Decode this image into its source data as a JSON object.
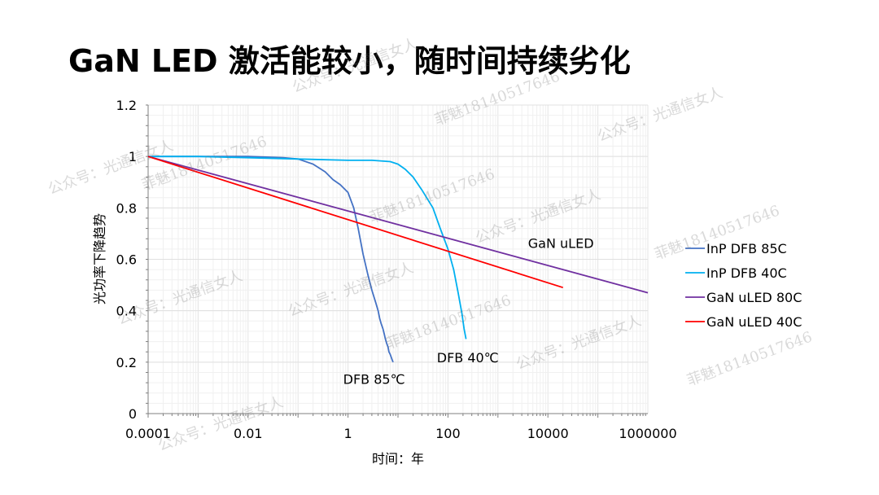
{
  "title": "GaN LED 激活能较小，随时间持续劣化",
  "watermarks": [
    "公众号：光通信女人",
    "菲魅18140517646",
    "公众号：光通信女人",
    "菲魅18140517646",
    "公众号：光通信女人",
    "菲魅18140517646",
    "公众号：光通信女人",
    "菲魅18140517646",
    "公众号：光通信女人",
    "公众号：光通信女人",
    "菲魅18140517646",
    "公众号：光通信女人",
    "菲魅18140517646",
    "公众号：光通信女人"
  ],
  "chart_data": {
    "type": "line",
    "xlabel": "时间：年",
    "ylabel": "光功率下降趋势",
    "xscale": "log",
    "xlim": [
      0.0001,
      1000000
    ],
    "ylim": [
      0,
      1.2
    ],
    "x_ticks": [
      "0.0001",
      "0.01",
      "1",
      "100",
      "10000",
      "1000000"
    ],
    "y_ticks": [
      "0",
      "0.2",
      "0.4",
      "0.6",
      "0.8",
      "1",
      "1.2"
    ],
    "grid": true,
    "legend_position": "right",
    "series": [
      {
        "name": "InP DFB 85C",
        "color": "#4472C4",
        "x": [
          0.0001,
          0.001,
          0.01,
          0.05,
          0.1,
          0.2,
          0.35,
          0.5,
          0.7,
          1,
          1.3,
          1.6,
          2,
          2.5,
          3,
          3.6,
          4,
          4.3,
          4.6,
          5,
          5.3,
          5.6,
          6,
          6.3,
          6.6,
          7,
          7.3,
          7.6,
          8
        ],
        "y": [
          1.0,
          1.0,
          1.0,
          0.995,
          0.99,
          0.97,
          0.94,
          0.91,
          0.89,
          0.86,
          0.8,
          0.72,
          0.62,
          0.54,
          0.48,
          0.43,
          0.4,
          0.37,
          0.35,
          0.33,
          0.31,
          0.29,
          0.27,
          0.26,
          0.24,
          0.23,
          0.22,
          0.21,
          0.2
        ]
      },
      {
        "name": "InP DFB 40C",
        "color": "#00B0F0",
        "x": [
          0.0001,
          0.001,
          0.01,
          0.1,
          1,
          3,
          7,
          10,
          14,
          20,
          30,
          50,
          70,
          100,
          130,
          160,
          190,
          210,
          230
        ],
        "y": [
          1.0,
          1.0,
          0.995,
          0.99,
          0.985,
          0.985,
          0.98,
          0.97,
          0.95,
          0.92,
          0.87,
          0.8,
          0.72,
          0.64,
          0.56,
          0.47,
          0.39,
          0.33,
          0.29
        ]
      },
      {
        "name": "GaN uLED 80C",
        "color": "#7030A0",
        "x": [
          0.0001,
          1000000
        ],
        "y": [
          1.0,
          0.47
        ]
      },
      {
        "name": "GaN uLED 40C",
        "color": "#FF0000",
        "x": [
          0.0001,
          20000
        ],
        "y": [
          1.0,
          0.49
        ]
      }
    ],
    "annotations": [
      {
        "text": "GaN uLED",
        "x": 4000,
        "y": 0.645
      },
      {
        "text": "DFB 40℃",
        "x": 60,
        "y": 0.2
      },
      {
        "text": "DFB 85℃",
        "x": 0.8,
        "y": 0.115
      }
    ]
  }
}
